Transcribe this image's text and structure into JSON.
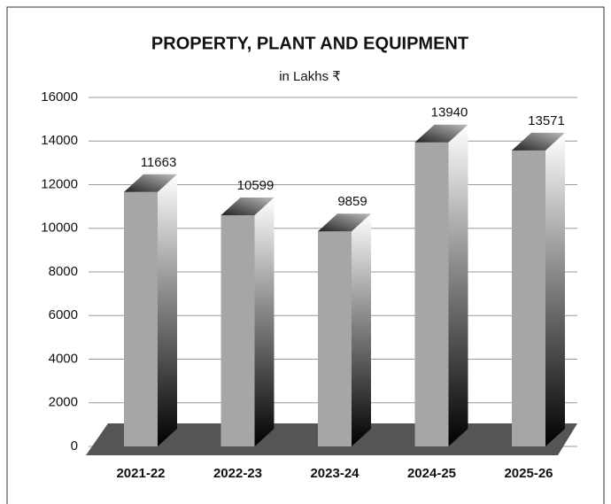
{
  "chart_data": {
    "type": "bar3d",
    "title": "PROPERTY, PLANT AND EQUIPMENT",
    "subtitle": "in Lakhs ₹",
    "categories": [
      "2021-22",
      "2022-23",
      "2023-24",
      "2024-25",
      "2025-26"
    ],
    "values": [
      11663,
      10599,
      9859,
      13940,
      13571
    ],
    "color": "#a6a6a6",
    "ylim": [
      0,
      16000
    ],
    "yticks": [
      0,
      2000,
      4000,
      6000,
      8000,
      10000,
      12000,
      14000,
      16000
    ],
    "grid": true
  }
}
